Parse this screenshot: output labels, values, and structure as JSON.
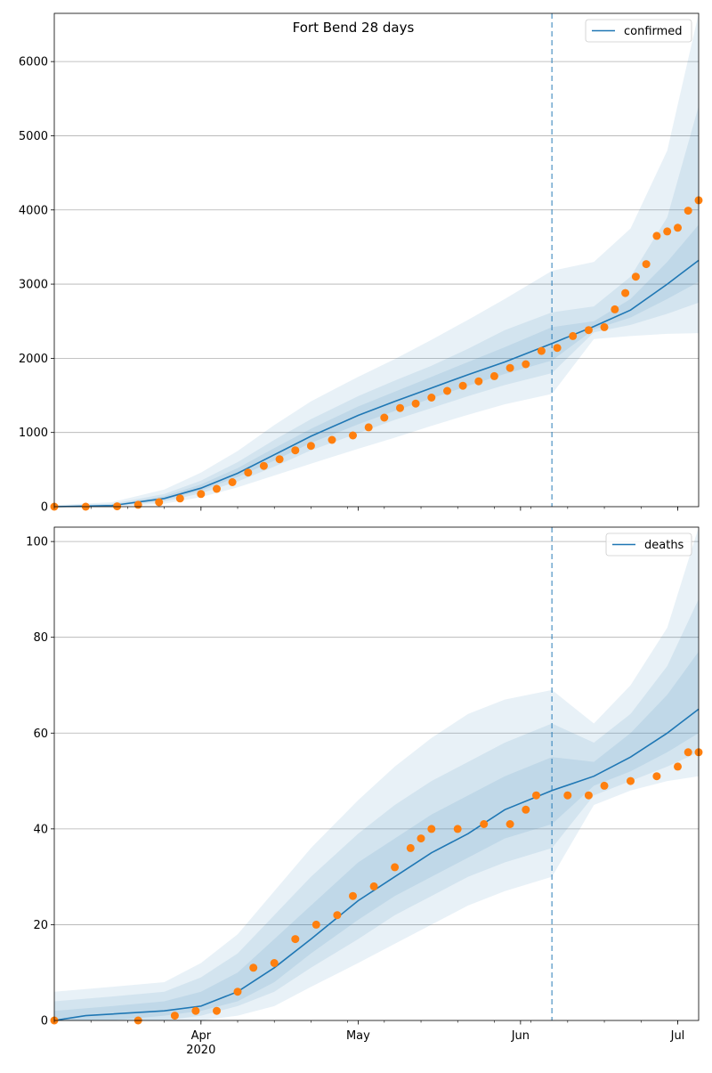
{
  "figure": {
    "title": "Fort Bend 28 days"
  },
  "colors": {
    "model_line": "#1f77b4",
    "observed_points": "#ff7f0e",
    "band": "#1f77b4",
    "forecast_start_line": "#1f77b4",
    "grid": "#b0b0b0"
  },
  "x_axis": {
    "start_date": "2020-03-04",
    "end_date": "2020-07-05",
    "tick_labels": [
      {
        "date": "2020-04-01",
        "label": "Apr"
      },
      {
        "date": "2020-05-01",
        "label": "May"
      },
      {
        "date": "2020-06-01",
        "label": "Jun"
      },
      {
        "date": "2020-07-01",
        "label": "Jul"
      }
    ],
    "year_label": "2020",
    "forecast_start": "2020-06-07"
  },
  "chart_data": [
    {
      "type": "line",
      "legend": "confirmed",
      "legend_position": "top-right",
      "grid": "horizontal",
      "ylim": [
        0,
        6650
      ],
      "yticks": [
        0,
        1000,
        2000,
        3000,
        4000,
        5000,
        6000
      ],
      "model_series": {
        "name": "confirmed",
        "x": [
          "2020-03-04",
          "2020-03-15",
          "2020-03-25",
          "2020-04-01",
          "2020-04-08",
          "2020-04-15",
          "2020-04-22",
          "2020-05-01",
          "2020-05-08",
          "2020-05-15",
          "2020-05-22",
          "2020-05-29",
          "2020-06-07",
          "2020-06-15",
          "2020-06-22",
          "2020-06-29",
          "2020-07-05"
        ],
        "y": [
          0,
          15,
          110,
          250,
          450,
          700,
          950,
          1230,
          1420,
          1600,
          1780,
          1950,
          2200,
          2430,
          2650,
          3000,
          3320
        ]
      },
      "bands": [
        {
          "level": "outer",
          "x": [
            "2020-03-04",
            "2020-03-15",
            "2020-03-25",
            "2020-04-01",
            "2020-04-08",
            "2020-04-15",
            "2020-04-22",
            "2020-05-01",
            "2020-05-08",
            "2020-05-15",
            "2020-05-22",
            "2020-05-29",
            "2020-06-07",
            "2020-06-15",
            "2020-06-22",
            "2020-06-29",
            "2020-07-05"
          ],
          "low": [
            0,
            0,
            40,
            130,
            260,
            420,
            580,
            780,
            930,
            1090,
            1240,
            1380,
            1520,
            2260,
            2300,
            2330,
            2340
          ],
          "high": [
            20,
            60,
            230,
            460,
            750,
            1100,
            1420,
            1750,
            1990,
            2250,
            2520,
            2800,
            3180,
            3300,
            3750,
            4800,
            6650
          ]
        },
        {
          "level": "middle",
          "x": [
            "2020-03-04",
            "2020-03-15",
            "2020-03-25",
            "2020-04-01",
            "2020-04-08",
            "2020-04-15",
            "2020-04-22",
            "2020-05-01",
            "2020-05-08",
            "2020-05-15",
            "2020-05-22",
            "2020-05-29",
            "2020-06-07",
            "2020-06-15",
            "2020-06-22",
            "2020-06-29",
            "2020-07-05"
          ],
          "low": [
            0,
            5,
            70,
            180,
            340,
            540,
            760,
            990,
            1170,
            1330,
            1490,
            1640,
            1800,
            2350,
            2450,
            2600,
            2750
          ],
          "high": [
            10,
            40,
            170,
            350,
            600,
            900,
            1180,
            1490,
            1700,
            1900,
            2130,
            2380,
            2620,
            2700,
            3100,
            3900,
            5400
          ]
        },
        {
          "level": "inner",
          "x": [
            "2020-03-04",
            "2020-03-15",
            "2020-03-25",
            "2020-04-01",
            "2020-04-08",
            "2020-04-15",
            "2020-04-22",
            "2020-05-01",
            "2020-05-08",
            "2020-05-15",
            "2020-05-22",
            "2020-05-29",
            "2020-06-07",
            "2020-06-15",
            "2020-06-22",
            "2020-06-29",
            "2020-07-05"
          ],
          "low": [
            0,
            10,
            90,
            215,
            400,
            620,
            860,
            1110,
            1290,
            1460,
            1630,
            1790,
            1970,
            2390,
            2550,
            2800,
            3030
          ],
          "high": [
            5,
            25,
            140,
            300,
            520,
            790,
            1050,
            1350,
            1550,
            1750,
            1950,
            2150,
            2420,
            2500,
            2800,
            3300,
            3800
          ]
        }
      ],
      "observed": {
        "x": [
          "2020-03-04",
          "2020-03-10",
          "2020-03-16",
          "2020-03-20",
          "2020-03-24",
          "2020-03-28",
          "2020-04-01",
          "2020-04-04",
          "2020-04-07",
          "2020-04-10",
          "2020-04-13",
          "2020-04-16",
          "2020-04-19",
          "2020-04-22",
          "2020-04-26",
          "2020-04-30",
          "2020-05-03",
          "2020-05-06",
          "2020-05-09",
          "2020-05-12",
          "2020-05-15",
          "2020-05-18",
          "2020-05-21",
          "2020-05-24",
          "2020-05-27",
          "2020-05-30",
          "2020-06-02",
          "2020-06-05",
          "2020-06-08",
          "2020-06-11",
          "2020-06-14",
          "2020-06-17",
          "2020-06-19",
          "2020-06-21",
          "2020-06-23",
          "2020-06-25",
          "2020-06-27",
          "2020-06-29",
          "2020-07-01",
          "2020-07-03",
          "2020-07-05"
        ],
        "y": [
          0,
          0,
          5,
          25,
          60,
          110,
          170,
          240,
          330,
          460,
          550,
          640,
          760,
          820,
          900,
          960,
          1070,
          1200,
          1330,
          1390,
          1470,
          1560,
          1630,
          1690,
          1760,
          1870,
          1920,
          2100,
          2140,
          2300,
          2380,
          2420,
          2660,
          2880,
          3100,
          3270,
          3650,
          3710,
          3760,
          3990,
          4130
        ]
      }
    },
    {
      "type": "line",
      "legend": "deaths",
      "legend_position": "top-right",
      "grid": "horizontal",
      "ylim": [
        0,
        103
      ],
      "yticks": [
        0,
        20,
        40,
        60,
        80,
        100
      ],
      "model_series": {
        "name": "deaths",
        "x": [
          "2020-03-04",
          "2020-03-10",
          "2020-03-25",
          "2020-04-01",
          "2020-04-08",
          "2020-04-15",
          "2020-04-22",
          "2020-05-01",
          "2020-05-08",
          "2020-05-15",
          "2020-05-22",
          "2020-05-29",
          "2020-06-07",
          "2020-06-15",
          "2020-06-22",
          "2020-06-29",
          "2020-07-05"
        ],
        "y": [
          0,
          1,
          2,
          3,
          6,
          11,
          17,
          25,
          30,
          35,
          39,
          44,
          48,
          51,
          55,
          60,
          65
        ]
      },
      "bands": [
        {
          "level": "outer",
          "x": [
            "2020-03-04",
            "2020-03-15",
            "2020-03-25",
            "2020-04-01",
            "2020-04-08",
            "2020-04-15",
            "2020-04-22",
            "2020-05-01",
            "2020-05-08",
            "2020-05-15",
            "2020-05-22",
            "2020-05-29",
            "2020-06-07",
            "2020-06-15",
            "2020-06-22",
            "2020-06-29",
            "2020-07-05"
          ],
          "low": [
            0,
            0,
            0,
            0,
            1,
            3,
            7,
            12,
            16,
            20,
            24,
            27,
            30,
            45,
            48,
            50,
            51
          ],
          "high": [
            6,
            7,
            8,
            12,
            18,
            27,
            36,
            46,
            53,
            59,
            64,
            67,
            69,
            62,
            70,
            82,
            103
          ]
        },
        {
          "level": "middle",
          "x": [
            "2020-03-04",
            "2020-03-15",
            "2020-03-25",
            "2020-04-01",
            "2020-04-08",
            "2020-04-15",
            "2020-04-22",
            "2020-05-01",
            "2020-05-08",
            "2020-05-15",
            "2020-05-22",
            "2020-05-29",
            "2020-06-07",
            "2020-06-15",
            "2020-06-22",
            "2020-06-29",
            "2020-07-05"
          ],
          "low": [
            0,
            0,
            0,
            1,
            3,
            6,
            11,
            17,
            22,
            26,
            30,
            33,
            36,
            47,
            50,
            53,
            56
          ],
          "high": [
            4,
            5,
            6,
            9,
            14,
            22,
            30,
            39,
            45,
            50,
            54,
            58,
            62,
            58,
            64,
            74,
            88
          ]
        },
        {
          "level": "inner",
          "x": [
            "2020-03-04",
            "2020-03-15",
            "2020-03-25",
            "2020-04-01",
            "2020-04-08",
            "2020-04-15",
            "2020-04-22",
            "2020-05-01",
            "2020-05-08",
            "2020-05-15",
            "2020-05-22",
            "2020-05-29",
            "2020-06-07",
            "2020-06-15",
            "2020-06-22",
            "2020-06-29",
            "2020-07-05"
          ],
          "low": [
            0,
            0,
            1,
            2,
            4,
            8,
            14,
            21,
            26,
            30,
            34,
            38,
            41,
            49,
            52,
            56,
            60
          ],
          "high": [
            2,
            3,
            4,
            6,
            10,
            17,
            24,
            33,
            38,
            43,
            47,
            51,
            55,
            54,
            60,
            68,
            77
          ]
        }
      ],
      "observed": {
        "x": [
          "2020-03-04",
          "2020-03-20",
          "2020-03-27",
          "2020-03-31",
          "2020-04-04",
          "2020-04-08",
          "2020-04-11",
          "2020-04-15",
          "2020-04-19",
          "2020-04-23",
          "2020-04-27",
          "2020-04-30",
          "2020-05-04",
          "2020-05-08",
          "2020-05-11",
          "2020-05-13",
          "2020-05-15",
          "2020-05-20",
          "2020-05-25",
          "2020-05-30",
          "2020-06-02",
          "2020-06-04",
          "2020-06-10",
          "2020-06-14",
          "2020-06-17",
          "2020-06-22",
          "2020-06-27",
          "2020-07-01",
          "2020-07-03",
          "2020-07-05"
        ],
        "y": [
          0,
          0,
          1,
          2,
          2,
          6,
          11,
          12,
          17,
          20,
          22,
          26,
          28,
          32,
          36,
          38,
          40,
          40,
          41,
          41,
          44,
          47,
          47,
          47,
          49,
          50,
          51,
          53,
          56,
          56
        ]
      }
    }
  ]
}
